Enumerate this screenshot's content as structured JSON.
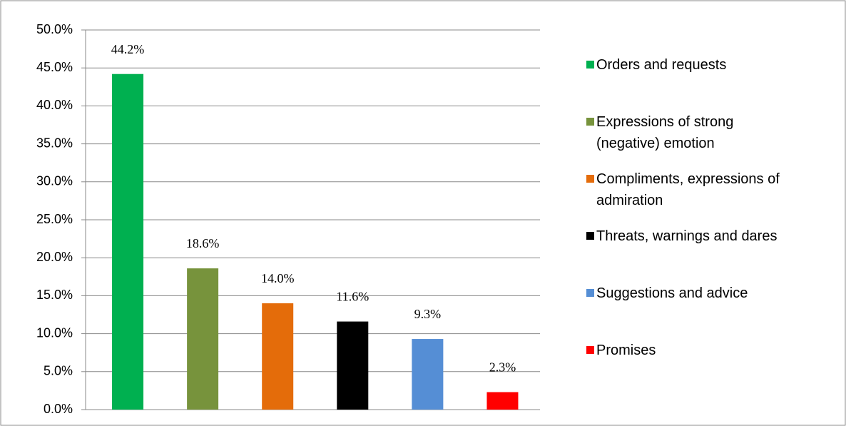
{
  "chart_data": {
    "type": "bar",
    "categories": [
      "Orders and requests",
      "Expressions of strong (negative) emotion",
      "Compliments, expressions of admiration",
      "Threats, warnings and dares",
      "Suggestions and advice",
      "Promises"
    ],
    "values": [
      44.2,
      18.6,
      14.0,
      11.6,
      9.3,
      2.3
    ],
    "value_labels": [
      "44.2%",
      "18.6%",
      "14.0%",
      "11.6%",
      "9.3%",
      "2.3%"
    ],
    "colors": [
      "#00b050",
      "#77933c",
      "#e46c0a",
      "#000000",
      "#558ed5",
      "#ff0000"
    ],
    "ylim": [
      0,
      50
    ],
    "yticks": [
      {
        "value": 0,
        "label": "0.0%"
      },
      {
        "value": 5,
        "label": "5.0%"
      },
      {
        "value": 10,
        "label": "10.0%"
      },
      {
        "value": 15,
        "label": "15.0%"
      },
      {
        "value": 20,
        "label": "20.0%"
      },
      {
        "value": 25,
        "label": "25.0%"
      },
      {
        "value": 30,
        "label": "30.0%"
      },
      {
        "value": 35,
        "label": "35.0%"
      },
      {
        "value": 40,
        "label": "40.0%"
      },
      {
        "value": 45,
        "label": "45.0%"
      },
      {
        "value": 50,
        "label": "50.0%"
      }
    ],
    "grid": true,
    "legend": "right"
  }
}
